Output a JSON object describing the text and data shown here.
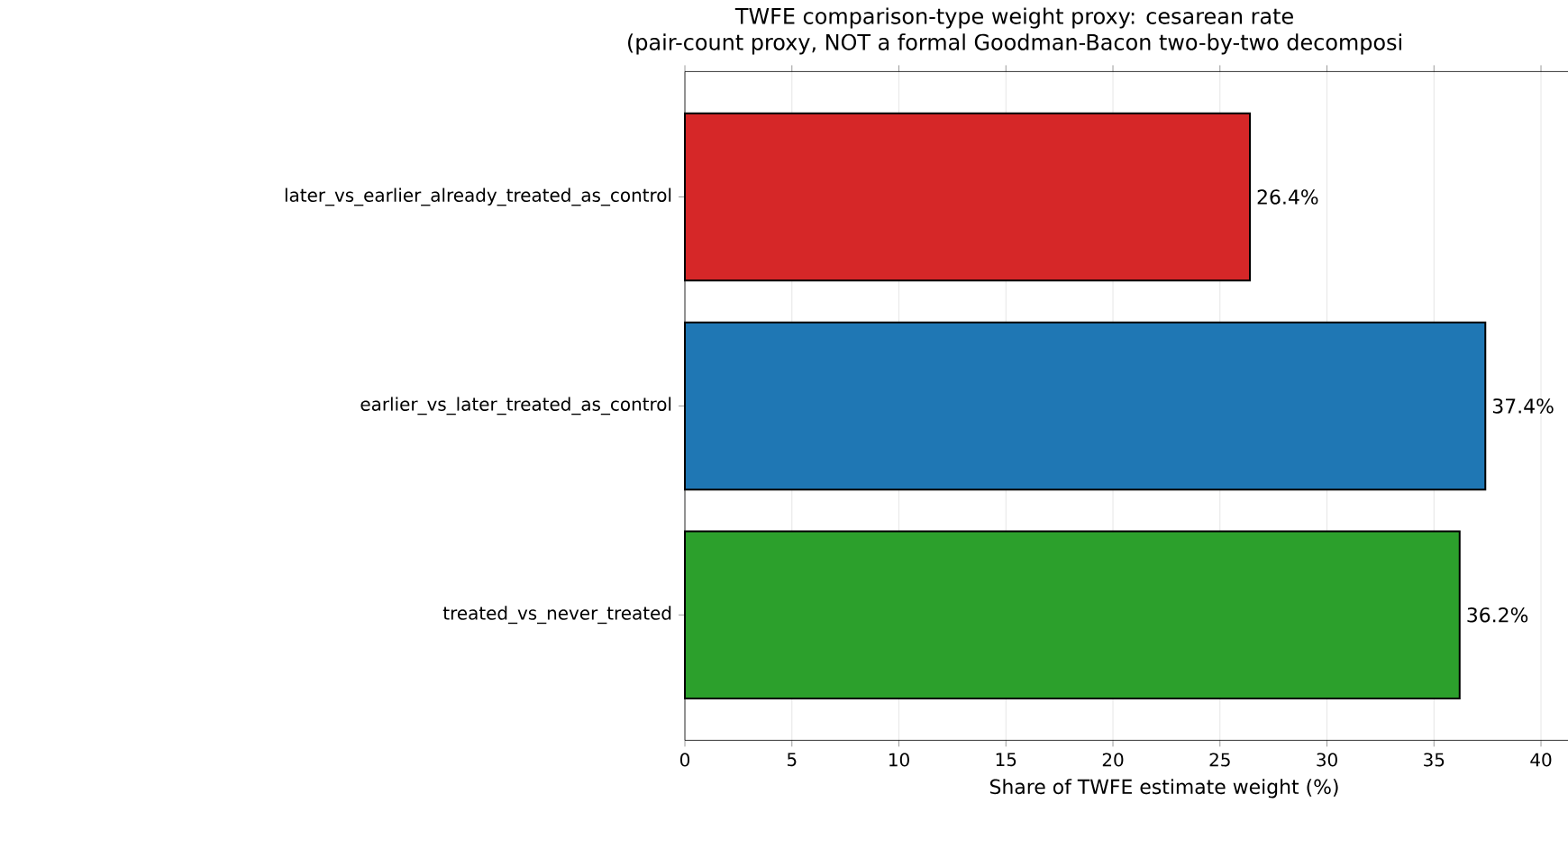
{
  "chart_data": {
    "type": "bar",
    "orientation": "horizontal",
    "title": "TWFE comparison-type weight proxy: cesarean rate\n(pair-count proxy, NOT a formal Goodman-Bacon two-by-two decomposi",
    "xlabel": "Share of TWFE estimate weight (%)",
    "categories": [
      "later_vs_earlier_already_treated_as_control",
      "earlier_vs_later_treated_as_control",
      "treated_vs_never_treated"
    ],
    "values": [
      26.4,
      37.4,
      36.2
    ],
    "colors": [
      "#d62728",
      "#1f77b4",
      "#2ca02c"
    ],
    "value_labels": [
      "26.4%",
      "37.4%",
      "36.2%"
    ],
    "xlim": [
      0,
      44.8
    ],
    "xticks": [
      0,
      5,
      10,
      15,
      20,
      25,
      30,
      35,
      40
    ],
    "grid": "x"
  }
}
